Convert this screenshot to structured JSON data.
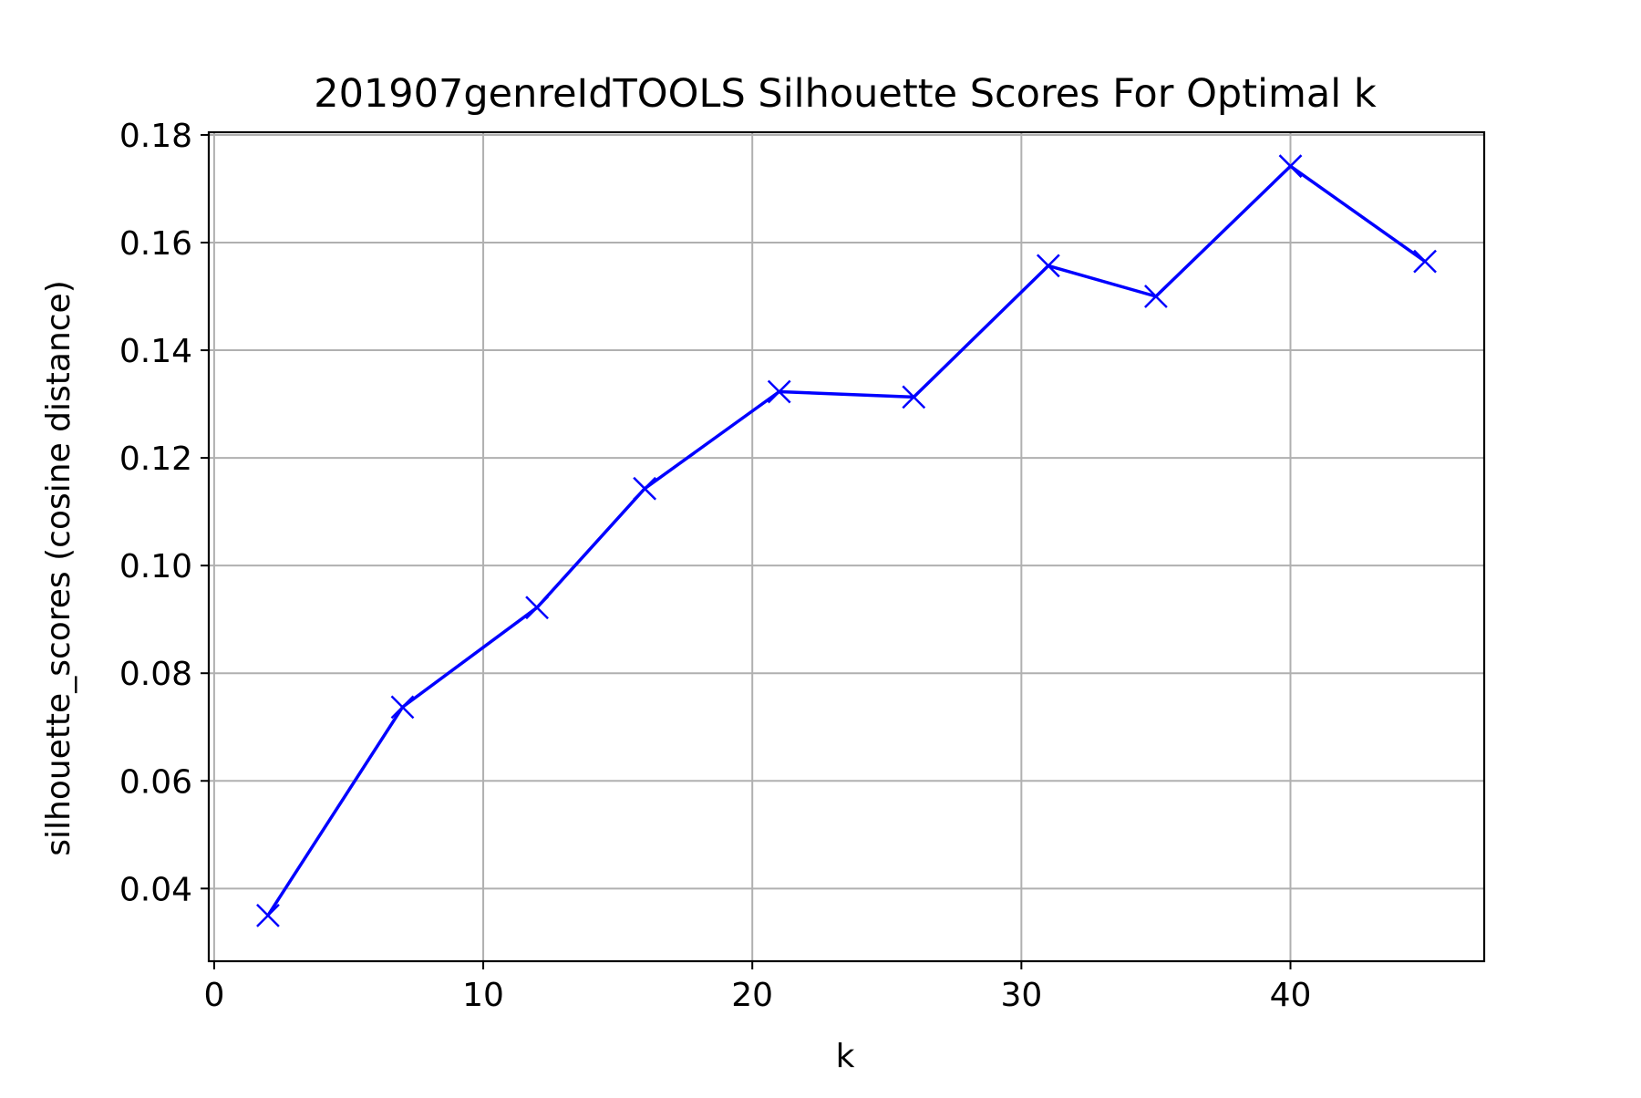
{
  "chart_data": {
    "type": "line",
    "title": "201907genreIdTOOLS Silhouette Scores For Optimal k",
    "xlabel": "k",
    "ylabel": "silhouette_scores (cosine distance)",
    "xlim": [
      -0.2,
      47.2
    ],
    "ylim": [
      0.0265,
      0.1805
    ],
    "x_ticks": [
      0,
      10,
      20,
      30,
      40
    ],
    "x_tick_labels": [
      "0",
      "10",
      "20",
      "30",
      "40"
    ],
    "y_ticks": [
      0.04,
      0.06,
      0.08,
      0.1,
      0.12,
      0.14,
      0.16,
      0.18
    ],
    "y_tick_labels": [
      "0.04",
      "0.06",
      "0.08",
      "0.10",
      "0.12",
      "0.14",
      "0.16",
      "0.18"
    ],
    "grid": true,
    "series": [
      {
        "color": "#0000ff",
        "marker": "x",
        "x": [
          2,
          7,
          12,
          16,
          21,
          26,
          31,
          35,
          40,
          45
        ],
        "y": [
          0.035,
          0.0737,
          0.0922,
          0.1143,
          0.1323,
          0.1313,
          0.1557,
          0.15,
          0.1742,
          0.1565
        ]
      }
    ]
  }
}
